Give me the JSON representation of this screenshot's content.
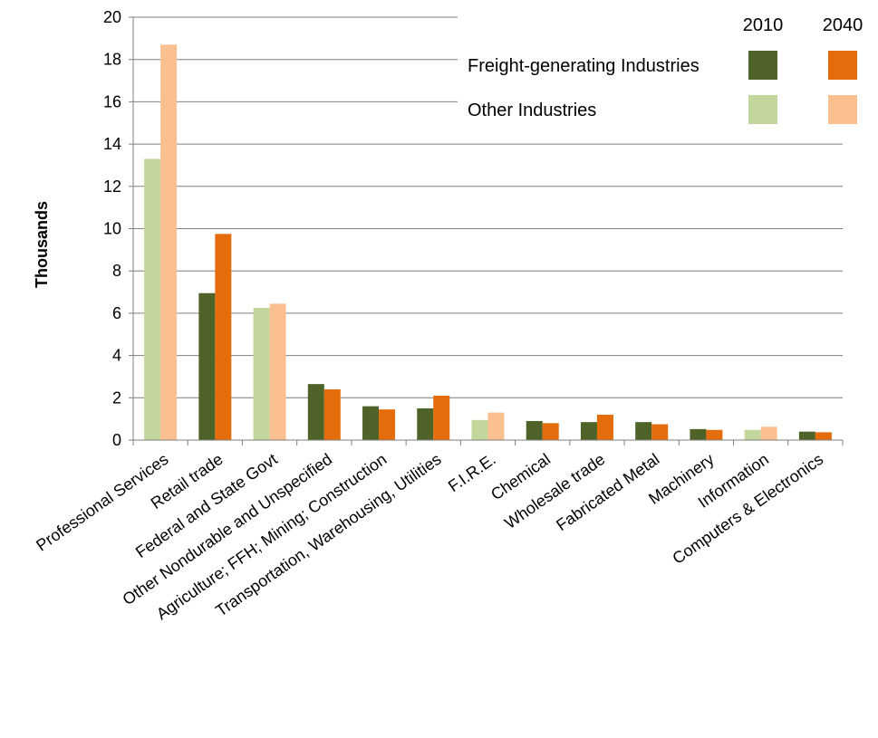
{
  "chart_data": {
    "type": "bar",
    "ylabel": "Thousands",
    "xlabel": "",
    "ylim": [
      0,
      20
    ],
    "yticks": [
      0,
      2,
      4,
      6,
      8,
      10,
      12,
      14,
      16,
      18,
      20
    ],
    "grid": true,
    "legend_position": "top-right",
    "categories": [
      "Professional Services",
      "Retail trade",
      "Federal and State Govt",
      "Other Nondurable and Unspecified",
      "Agriculture; FFH; Mining; Construction",
      "Transportation, Warehousing, Utilities",
      "F.I.R.E.",
      "Chemical",
      "Wholesale trade",
      "Fabricated Metal",
      "Machinery",
      "Information",
      "Computers & Electronics"
    ],
    "industry_type": [
      "other",
      "freight",
      "other",
      "freight",
      "freight",
      "freight",
      "other",
      "freight",
      "freight",
      "freight",
      "freight",
      "other",
      "freight"
    ],
    "series": [
      {
        "name": "2010",
        "values": [
          13.3,
          6.95,
          6.25,
          2.65,
          1.6,
          1.5,
          0.95,
          0.9,
          0.85,
          0.85,
          0.52,
          0.48,
          0.4
        ]
      },
      {
        "name": "2040",
        "values": [
          18.7,
          9.75,
          6.45,
          2.4,
          1.45,
          2.1,
          1.3,
          0.8,
          1.2,
          0.75,
          0.48,
          0.63,
          0.37
        ]
      }
    ],
    "legend": {
      "years": [
        "2010",
        "2040"
      ],
      "rows": [
        {
          "label": "Freight-generating Industries",
          "key": "freight"
        },
        {
          "label": "Other Industries",
          "key": "other"
        }
      ]
    },
    "colors": {
      "freight": {
        "2010": "#4f6228",
        "2040": "#e46c0a"
      },
      "other": {
        "2010": "#c3d69b",
        "2040": "#fac090"
      }
    }
  }
}
